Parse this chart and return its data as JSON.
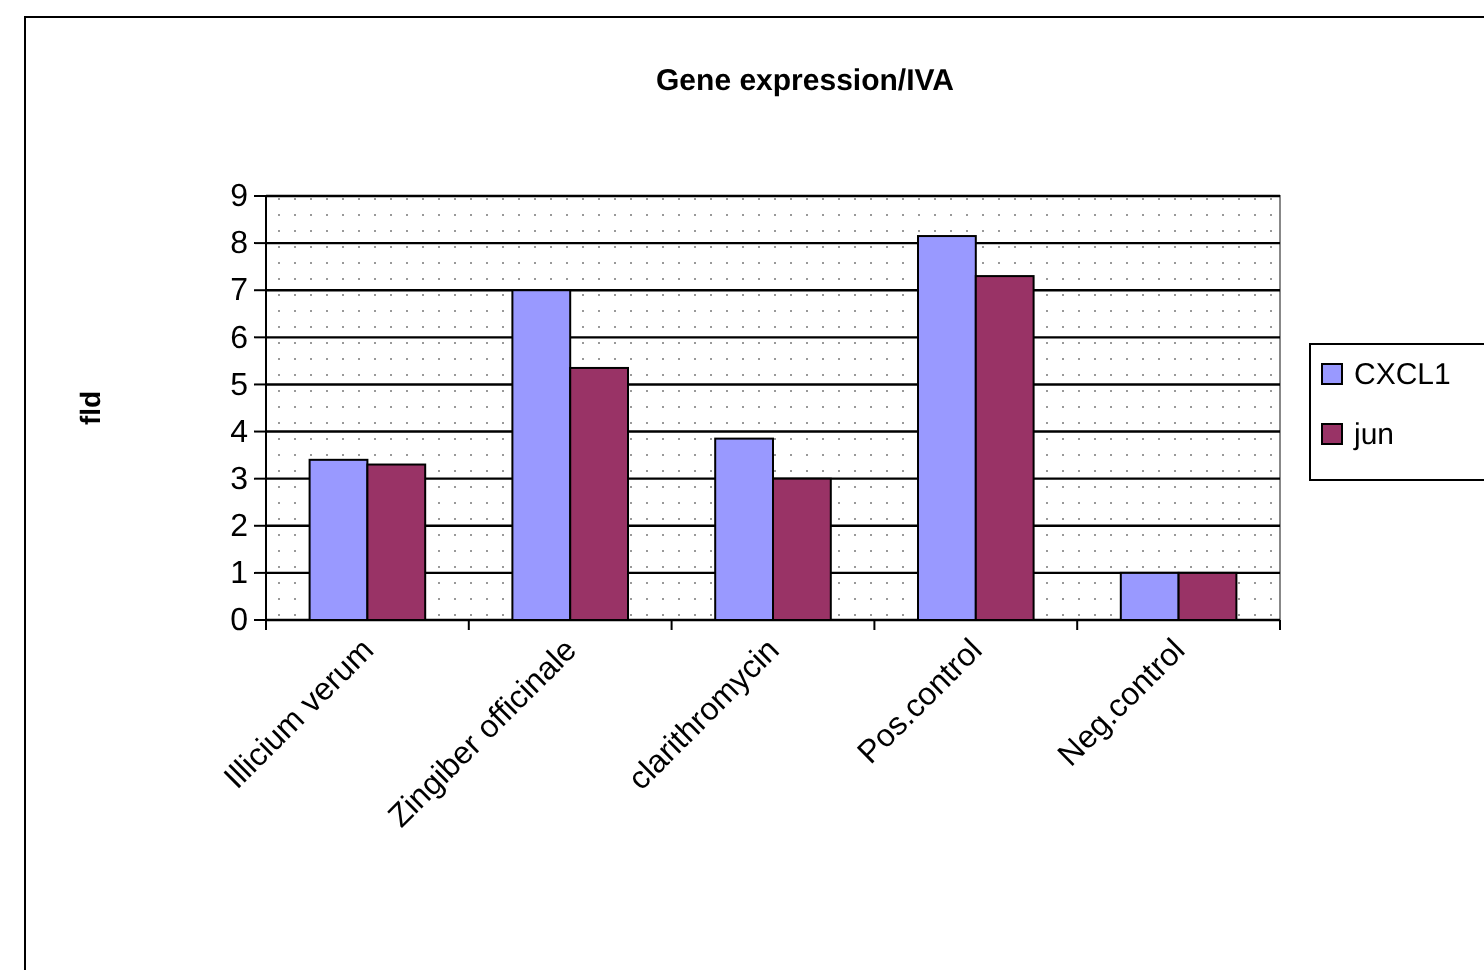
{
  "chart_data": {
    "type": "bar",
    "title": "Gene expression/IVA",
    "ylabel": "fld",
    "categories": [
      "Illicium verum",
      "Zingiber officinale",
      "clarithromycin",
      "Pos.control",
      "Neg.control"
    ],
    "series": [
      {
        "name": "CXCL1",
        "color": "#9999ff",
        "values": [
          3.4,
          7.0,
          3.85,
          8.15,
          1.0
        ]
      },
      {
        "name": "jun",
        "color": "#993366",
        "values": [
          3.3,
          5.35,
          3.0,
          7.3,
          1.0
        ]
      }
    ],
    "ylim": [
      0,
      9
    ],
    "yticks": [
      0,
      1,
      2,
      3,
      4,
      5,
      6,
      7,
      8,
      9
    ],
    "grid": "y",
    "legend": "right"
  }
}
